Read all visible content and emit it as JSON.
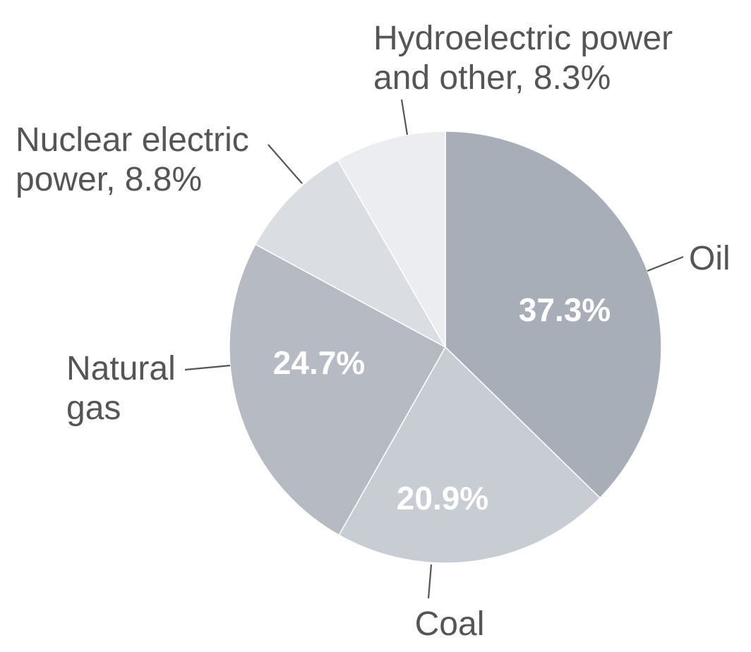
{
  "chart_data": {
    "type": "pie",
    "title": "",
    "start_angle_deg": 0,
    "direction": "clockwise",
    "slices": [
      {
        "name": "Oil",
        "value": 37.3,
        "color": "#a8aeb8",
        "label_lines": [
          "Oil"
        ],
        "value_label": "37.3%"
      },
      {
        "name": "Coal",
        "value": 20.9,
        "color": "#c8ccd3",
        "label_lines": [
          "Coal"
        ],
        "value_label": "20.9%"
      },
      {
        "name": "Natural gas",
        "value": 24.7,
        "color": "#b5bac3",
        "label_lines": [
          "Natural",
          "gas"
        ],
        "value_label": "24.7%"
      },
      {
        "name": "Nuclear electric power",
        "value": 8.8,
        "color": "#dadde2",
        "label_lines": [
          "Nuclear electric",
          "power, 8.8%"
        ],
        "value_label": ""
      },
      {
        "name": "Hydroelectric power and other",
        "value": 8.3,
        "color": "#ecedf0",
        "label_lines": [
          "Hydroelectric power",
          "and other, 8.3%"
        ],
        "value_label": ""
      }
    ]
  }
}
